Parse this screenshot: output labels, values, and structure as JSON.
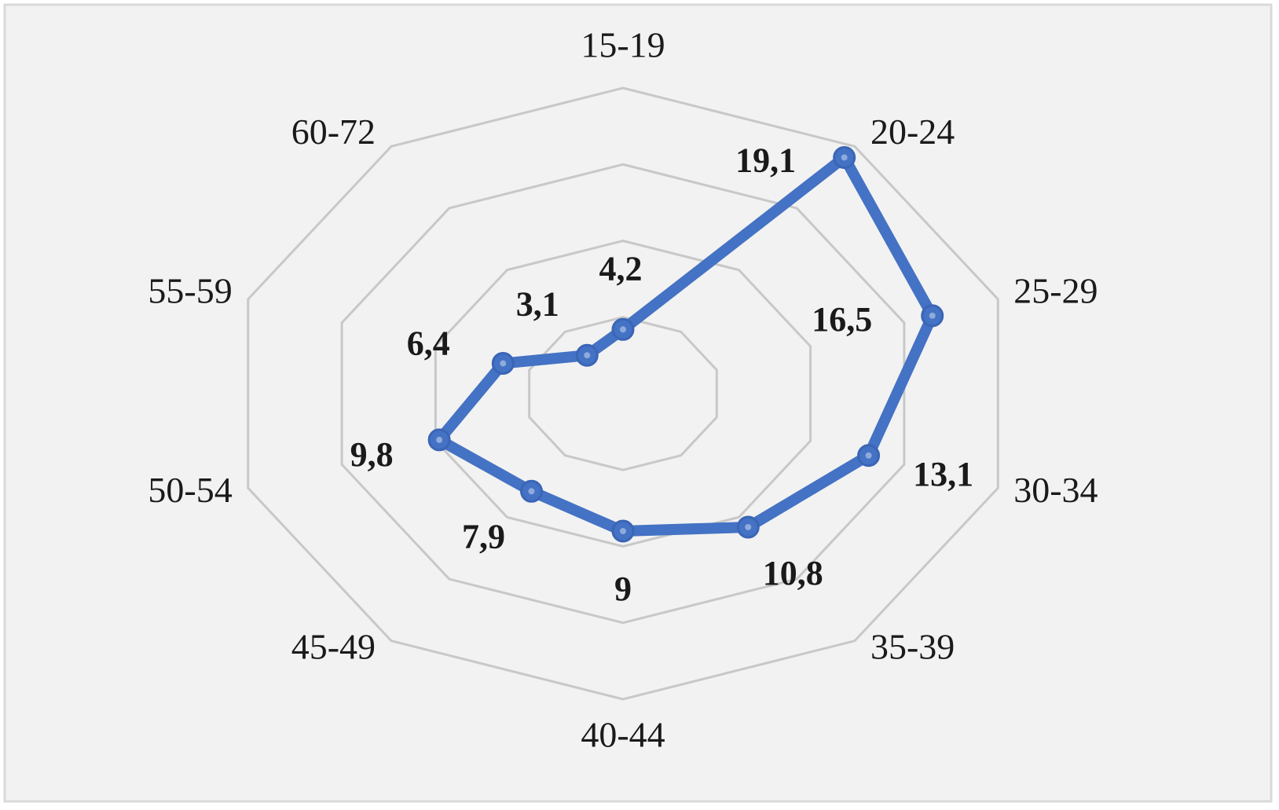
{
  "chart_data": {
    "type": "radar",
    "categories": [
      "15-19",
      "20-24",
      "25-29",
      "30-34",
      "35-39",
      "40-44",
      "45-49",
      "50-54",
      "55-59",
      "60-72"
    ],
    "values": [
      4.2,
      19.1,
      16.5,
      13.1,
      10.8,
      9,
      7.9,
      9.8,
      6.4,
      3.1
    ],
    "value_labels": [
      "4,2",
      "19,1",
      "16,5",
      "13,1",
      "10,8",
      "9",
      "7,9",
      "9,8",
      "6,4",
      "3,1"
    ],
    "color": "#4472c4",
    "ylim": [
      0,
      20
    ],
    "yticks": [
      5,
      10,
      15,
      20
    ],
    "grid": true
  }
}
